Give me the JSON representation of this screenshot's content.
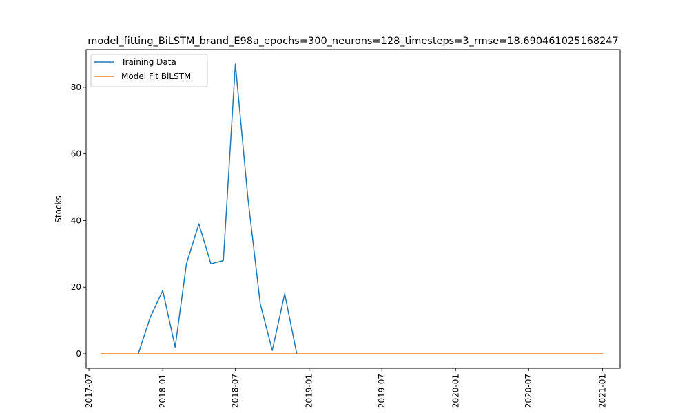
{
  "chart_data": {
    "type": "line",
    "title": "model_fitting_BiLSTM_brand_E98a_epochs=300_neurons=128_timesteps=3_rmse=18.690461025168247",
    "xlabel": "",
    "ylabel": "Stocks",
    "x_tick_labels": [
      "2017-07",
      "2018-01",
      "2018-07",
      "2019-01",
      "2019-07",
      "2020-01",
      "2020-07",
      "2021-01"
    ],
    "x_ticks": [
      "2017-07-01",
      "2018-01-01",
      "2018-07-01",
      "2019-01-01",
      "2019-07-01",
      "2020-01-01",
      "2020-07-01",
      "2021-01-01"
    ],
    "xlim": [
      "2017-06-24",
      "2021-02-14"
    ],
    "y_ticks": [
      0,
      20,
      40,
      60,
      80
    ],
    "ylim": [
      -4.35,
      91.35
    ],
    "grid": false,
    "legend_position": "upper left",
    "series": [
      {
        "name": "Training Data",
        "color": "#1f77b4",
        "points": [
          [
            "2017-11-01",
            0
          ],
          [
            "2017-12-01",
            11
          ],
          [
            "2018-01-01",
            19
          ],
          [
            "2018-02-01",
            2
          ],
          [
            "2018-03-01",
            27
          ],
          [
            "2018-04-01",
            39
          ],
          [
            "2018-05-01",
            27
          ],
          [
            "2018-06-01",
            28
          ],
          [
            "2018-07-01",
            87
          ],
          [
            "2018-08-01",
            47
          ],
          [
            "2018-09-01",
            15
          ],
          [
            "2018-10-01",
            1
          ],
          [
            "2018-11-01",
            18
          ],
          [
            "2018-12-01",
            0
          ]
        ]
      },
      {
        "name": "Model Fit BiLSTM",
        "color": "#ff7f0e",
        "points": [
          [
            "2017-08-01",
            0
          ],
          [
            "2018-08-01",
            0
          ],
          [
            "2019-08-01",
            0
          ],
          [
            "2020-08-01",
            0
          ],
          [
            "2021-01-01",
            0
          ]
        ]
      }
    ]
  }
}
